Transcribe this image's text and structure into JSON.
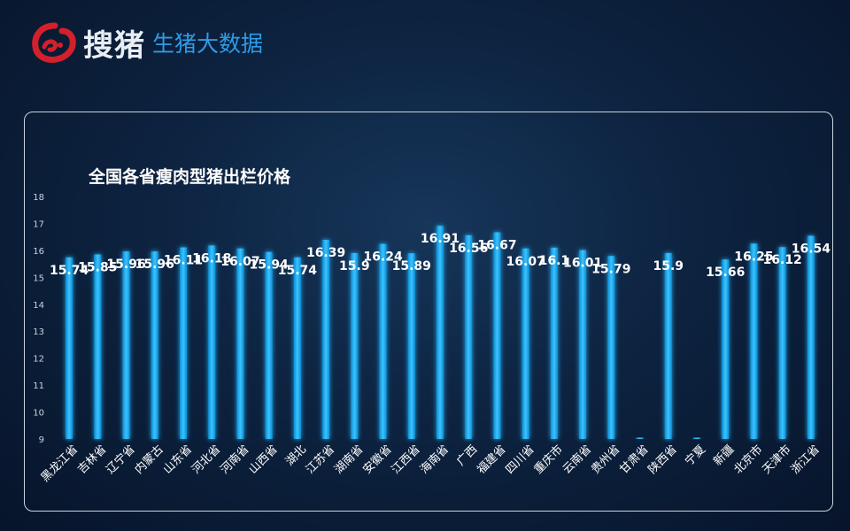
{
  "header": {
    "brand": "搜猪",
    "subtitle": "生猪大数据"
  },
  "chart_data": {
    "type": "bar",
    "title": "全国各省瘦肉型猪出栏价格",
    "xlabel": "",
    "ylabel": "",
    "ylim": [
      9,
      18
    ],
    "yticks": [
      9,
      10,
      11,
      12,
      13,
      14,
      15,
      16,
      17,
      18
    ],
    "grid": false,
    "categories": [
      "黑龙江省",
      "吉林省",
      "辽宁省",
      "内蒙古",
      "山东省",
      "河北省",
      "河南省",
      "山西省",
      "湖北",
      "江苏省",
      "湖南省",
      "安徽省",
      "江西省",
      "海南省",
      "广西",
      "福建省",
      "四川省",
      "重庆市",
      "云南省",
      "贵州省",
      "甘肃省",
      "陕西省",
      "宁夏",
      "新疆",
      "北京市",
      "天津市",
      "浙江省"
    ],
    "values": [
      15.74,
      15.85,
      15.96,
      15.96,
      16.11,
      16.18,
      16.07,
      15.94,
      15.74,
      16.39,
      15.9,
      16.24,
      15.89,
      16.91,
      16.56,
      16.67,
      16.07,
      16.1,
      16.01,
      15.79,
      9.05,
      15.9,
      9.05,
      15.66,
      16.25,
      16.12,
      16.54
    ],
    "data_labels": [
      "15.74",
      "15.85",
      "15.96",
      "15.96",
      "16.11",
      "16.18",
      "16.07",
      "15.94",
      "15.74",
      "16.39",
      "15.9",
      "16.24",
      "15.89",
      "16.91",
      "16.56",
      "16.67",
      "16.07",
      "16.1",
      "16.01",
      "15.79",
      "",
      "15.9",
      "",
      "15.66",
      "16.25",
      "16.12",
      "16.54"
    ],
    "bar_color": "#12a4e8",
    "label_color": "#ffffff"
  }
}
